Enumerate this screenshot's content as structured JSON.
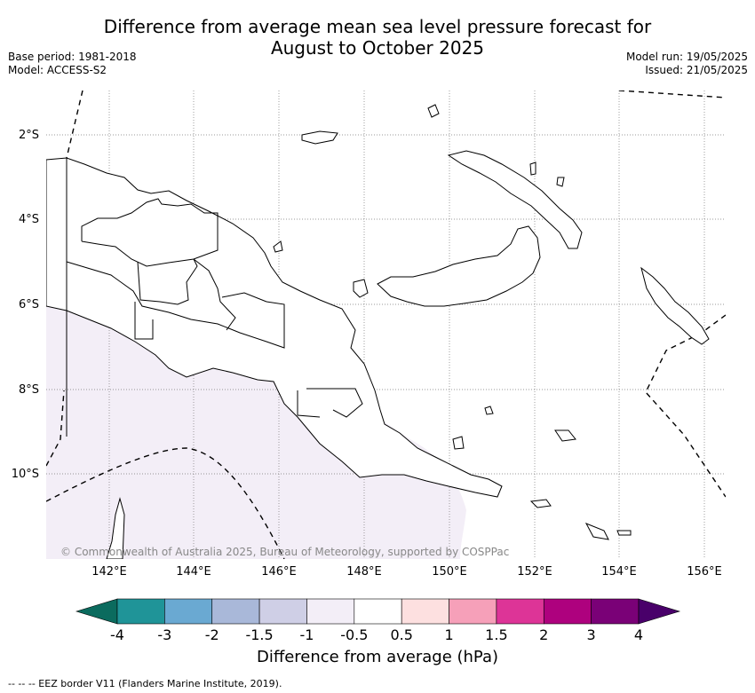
{
  "header": {
    "title_line1": "Difference from average mean sea level pressure forecast for",
    "title_line2": "August to October 2025",
    "base_period": "Base period: 1981-2018",
    "model": "Model: ACCESS-S2",
    "model_run": "Model run: 19/05/2025",
    "issued": "Issued: 21/05/2025"
  },
  "map": {
    "lat_labels": [
      "2°S",
      "4°S",
      "6°S",
      "8°S",
      "10°S"
    ],
    "lon_labels": [
      "142°E",
      "144°E",
      "146°E",
      "148°E",
      "150°E",
      "152°E",
      "154°E",
      "156°E"
    ],
    "copyright": "© Commonwealth of Australia 2025, Bureau of Meteorology, supported by COSPPac",
    "shading_category": "-1 to -0.5 hPa"
  },
  "colorbar": {
    "ticks": [
      "-4",
      "-3",
      "-2",
      "-1.5",
      "-1",
      "-0.5",
      "0.5",
      "1",
      "1.5",
      "2",
      "3",
      "4"
    ],
    "colors": [
      "#0b6b5e",
      "#1f9498",
      "#6aa9d2",
      "#a9b8d9",
      "#cfcfe6",
      "#f3eef7",
      "#ffffff",
      "#fde0e0",
      "#f6a0b9",
      "#dd3497",
      "#ae017e",
      "#7a0177",
      "#49006a"
    ],
    "label": "Difference from average (hPa)"
  },
  "footer": {
    "legend_line": "--  --  -- EEZ border V11 (Flanders Marine Institute, 2019)."
  }
}
